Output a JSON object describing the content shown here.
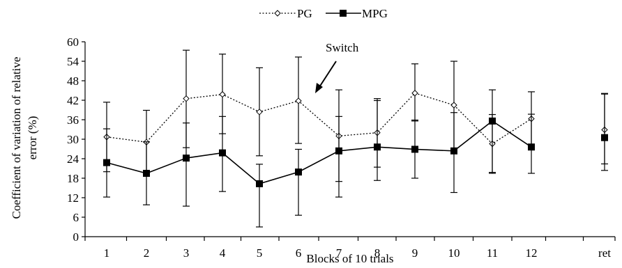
{
  "chart_data": {
    "type": "line",
    "categories": [
      "1",
      "2",
      "3",
      "4",
      "5",
      "6",
      "7",
      "8",
      "9",
      "10",
      "11",
      "12",
      "ret"
    ],
    "series": [
      {
        "name": "PG",
        "style": "dotted",
        "marker": "open-diamond",
        "values": [
          30.7,
          29.1,
          42.5,
          43.8,
          38.4,
          41.8,
          31.0,
          32.0,
          44.2,
          40.5,
          28.6,
          36.3,
          32.9
        ],
        "err_high": [
          41.4,
          38.9,
          57.4,
          56.2,
          52.0,
          55.3,
          45.2,
          42.5,
          53.2,
          54.0,
          37.6,
          44.6,
          44.1
        ],
        "err_low": [
          20.0,
          19.6,
          27.4,
          31.7,
          24.9,
          28.7,
          17.0,
          21.4,
          35.6,
          26.5,
          19.8,
          28.2,
          22.4
        ]
      },
      {
        "name": "MPG",
        "style": "solid",
        "marker": "filled-square",
        "values": [
          22.8,
          19.5,
          24.2,
          25.8,
          16.3,
          19.9,
          26.4,
          27.6,
          26.9,
          26.4,
          35.6,
          27.6,
          30.5
        ],
        "err_high": [
          33.2,
          29.2,
          35.0,
          37.0,
          22.3,
          26.9,
          37.0,
          41.9,
          35.9,
          38.2,
          45.2,
          37.7,
          43.9
        ],
        "err_low": [
          12.2,
          9.8,
          9.4,
          13.9,
          3.0,
          6.6,
          12.2,
          17.3,
          18.0,
          13.6,
          19.5,
          19.5,
          20.4
        ]
      }
    ],
    "xlabel": "Blocks of 10 trials",
    "ylabel_lines": [
      "Coefficient of variation of relative",
      "error (%)"
    ],
    "ylim": [
      0,
      60
    ],
    "yticks": [
      0,
      6,
      12,
      18,
      24,
      30,
      36,
      42,
      48,
      54,
      60
    ],
    "grid": false,
    "legend_position": "top-center",
    "annotation": {
      "text": "Switch",
      "target_category": "6.5",
      "target_value": 42
    },
    "colors": {
      "line": "#000000",
      "background": "#ffffff"
    }
  }
}
